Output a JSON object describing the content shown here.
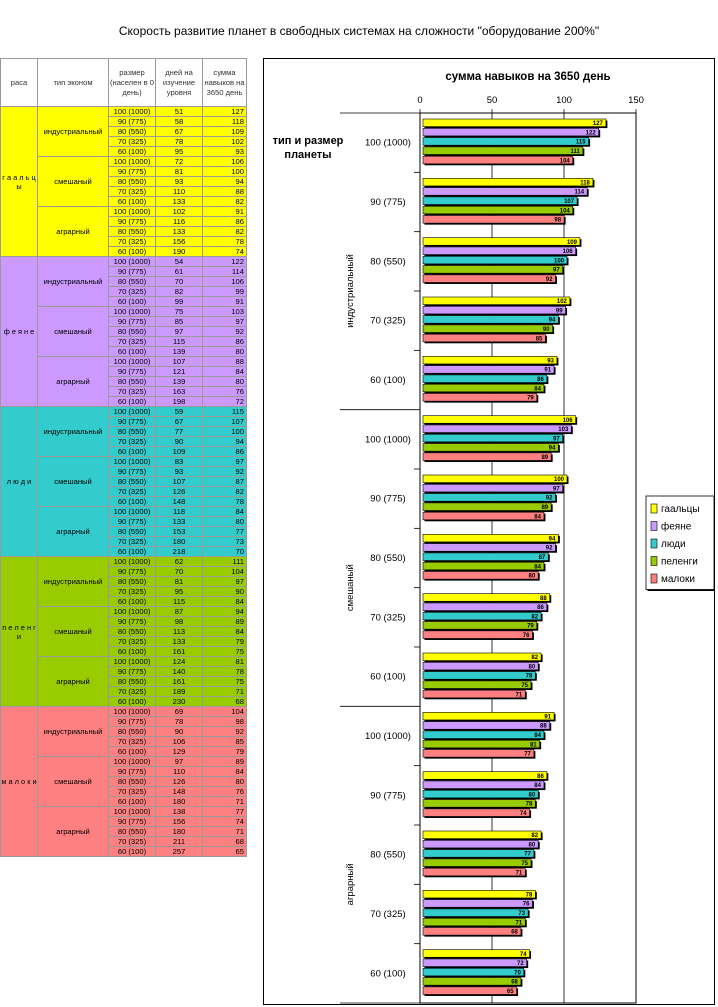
{
  "title": "Скорость развитие планет в свободных системах на сложности \"оборудование 200%\"",
  "table": {
    "headers": {
      "race": "раса",
      "econ": "тип эконом",
      "size": "размер (населен в 0 день)",
      "days": "дней на изучение уровня",
      "sum": "сумма навыков на 3650 день"
    },
    "race_letters": {
      "gaal": [
        "г",
        "а",
        "а",
        "л",
        "ь",
        "ц",
        "ы"
      ],
      "feyane": [
        "ф",
        "е",
        "я",
        "н",
        "е"
      ],
      "lyudi": [
        "л",
        "ю",
        "д",
        "и"
      ],
      "peleng": [
        "п",
        "е",
        "л",
        "е",
        "н",
        "г",
        "и"
      ],
      "maloki": [
        "м",
        "а",
        "л",
        "о",
        "к",
        "и"
      ]
    },
    "races": [
      {
        "key": "gaal",
        "color": "#ffff00",
        "groups": [
          {
            "econ": "индустриальный",
            "rows": [
              [
                "100 (1000)",
                "51",
                "127"
              ],
              [
                "90 (775)",
                "58",
                "118"
              ],
              [
                "80 (550)",
                "67",
                "109"
              ],
              [
                "70 (325)",
                "78",
                "102"
              ],
              [
                "60 (100)",
                "95",
                "93"
              ]
            ]
          },
          {
            "econ": "смешаный",
            "rows": [
              [
                "100 (1000)",
                "72",
                "106"
              ],
              [
                "90 (775)",
                "81",
                "100"
              ],
              [
                "80 (550)",
                "93",
                "94"
              ],
              [
                "70 (325)",
                "110",
                "88"
              ],
              [
                "60 (100)",
                "133",
                "82"
              ]
            ]
          },
          {
            "econ": "аграрный",
            "rows": [
              [
                "100 (1000)",
                "102",
                "91"
              ],
              [
                "90 (775)",
                "116",
                "86"
              ],
              [
                "80 (550)",
                "133",
                "82"
              ],
              [
                "70 (325)",
                "156",
                "78"
              ],
              [
                "60 (100)",
                "190",
                "74"
              ]
            ]
          }
        ]
      },
      {
        "key": "feyane",
        "color": "#cc99ff",
        "groups": [
          {
            "econ": "индустриальный",
            "rows": [
              [
                "100 (1000)",
                "54",
                "122"
              ],
              [
                "90 (775)",
                "61",
                "114"
              ],
              [
                "80 (550)",
                "70",
                "106"
              ],
              [
                "70 (325)",
                "82",
                "99"
              ],
              [
                "60 (100)",
                "99",
                "91"
              ]
            ]
          },
          {
            "econ": "смешаный",
            "rows": [
              [
                "100 (1000)",
                "75",
                "103"
              ],
              [
                "90 (775)",
                "85",
                "97"
              ],
              [
                "80 (550)",
                "97",
                "92"
              ],
              [
                "70 (325)",
                "115",
                "86"
              ],
              [
                "60 (100)",
                "139",
                "80"
              ]
            ]
          },
          {
            "econ": "аграрный",
            "rows": [
              [
                "100 (1000)",
                "107",
                "88"
              ],
              [
                "90 (775)",
                "121",
                "84"
              ],
              [
                "80 (550)",
                "139",
                "80"
              ],
              [
                "70 (325)",
                "163",
                "76"
              ],
              [
                "60 (100)",
                "198",
                "72"
              ]
            ]
          }
        ]
      },
      {
        "key": "lyudi",
        "color": "#33cccc",
        "groups": [
          {
            "econ": "индустриальный",
            "rows": [
              [
                "100 (1000)",
                "59",
                "115"
              ],
              [
                "90 (775)",
                "67",
                "107"
              ],
              [
                "80 (550)",
                "77",
                "100"
              ],
              [
                "70 (325)",
                "90",
                "94"
              ],
              [
                "60 (100)",
                "109",
                "86"
              ]
            ]
          },
          {
            "econ": "смешаный",
            "rows": [
              [
                "100 (1000)",
                "83",
                "97"
              ],
              [
                "90 (775)",
                "93",
                "92"
              ],
              [
                "80 (550)",
                "107",
                "87"
              ],
              [
                "70 (325)",
                "126",
                "82"
              ],
              [
                "60 (100)",
                "148",
                "78"
              ]
            ]
          },
          {
            "econ": "аграрный",
            "rows": [
              [
                "100 (1000)",
                "118",
                "84"
              ],
              [
                "90 (775)",
                "133",
                "80"
              ],
              [
                "80 (550)",
                "153",
                "77"
              ],
              [
                "70 (325)",
                "180",
                "73"
              ],
              [
                "60 (100)",
                "218",
                "70"
              ]
            ]
          }
        ]
      },
      {
        "key": "peleng",
        "color": "#99cc00",
        "groups": [
          {
            "econ": "индустриальный",
            "rows": [
              [
                "100 (1000)",
                "62",
                "111"
              ],
              [
                "90 (775)",
                "70",
                "104"
              ],
              [
                "80 (550)",
                "81",
                "97"
              ],
              [
                "70 (325)",
                "95",
                "90"
              ],
              [
                "60 (100)",
                "115",
                "84"
              ]
            ]
          },
          {
            "econ": "смешаный",
            "rows": [
              [
                "100 (1000)",
                "87",
                "94"
              ],
              [
                "90 (775)",
                "98",
                "89"
              ],
              [
                "80 (550)",
                "113",
                "84"
              ],
              [
                "70 (325)",
                "133",
                "79"
              ],
              [
                "60 (100)",
                "161",
                "75"
              ]
            ]
          },
          {
            "econ": "аграрный",
            "rows": [
              [
                "100 (1000)",
                "124",
                "81"
              ],
              [
                "90 (775)",
                "140",
                "78"
              ],
              [
                "80 (550)",
                "161",
                "75"
              ],
              [
                "70 (325)",
                "189",
                "71"
              ],
              [
                "60 (100)",
                "230",
                "68"
              ]
            ]
          }
        ]
      },
      {
        "key": "maloki",
        "color": "#ff8080",
        "groups": [
          {
            "econ": "индустриальный",
            "rows": [
              [
                "100 (1000)",
                "69",
                "104"
              ],
              [
                "90 (775)",
                "78",
                "98"
              ],
              [
                "80 (550)",
                "90",
                "92"
              ],
              [
                "70 (325)",
                "106",
                "85"
              ],
              [
                "60 (100)",
                "129",
                "79"
              ]
            ]
          },
          {
            "econ": "смешаный",
            "rows": [
              [
                "100 (1000)",
                "97",
                "89"
              ],
              [
                "90 (775)",
                "110",
                "84"
              ],
              [
                "80 (550)",
                "126",
                "80"
              ],
              [
                "70 (325)",
                "148",
                "76"
              ],
              [
                "60 (100)",
                "180",
                "71"
              ]
            ]
          },
          {
            "econ": "аграрный",
            "rows": [
              [
                "100 (1000)",
                "138",
                "77"
              ],
              [
                "90 (775)",
                "156",
                "74"
              ],
              [
                "80 (550)",
                "180",
                "71"
              ],
              [
                "70 (325)",
                "211",
                "68"
              ],
              [
                "60 (100)",
                "257",
                "65"
              ]
            ]
          }
        ]
      }
    ]
  },
  "chart_data": {
    "type": "bar",
    "orientation": "horizontal",
    "title": "сумма навыков на 3650 день",
    "ylabel": "тип и размер планеты",
    "xlim": [
      0,
      150
    ],
    "xticks": [
      "0",
      "50",
      "100",
      "150"
    ],
    "groups": [
      "индустриальный",
      "смешаный",
      "аграрный"
    ],
    "sizes": [
      "100 (1000)",
      "90 (775)",
      "80 (550)",
      "70 (325)",
      "60 (100)"
    ],
    "series": [
      {
        "name": "гаальцы",
        "color": "#ffff00",
        "values": [
          127,
          118,
          109,
          102,
          93,
          106,
          100,
          94,
          88,
          82,
          91,
          86,
          82,
          78,
          74
        ]
      },
      {
        "name": "феяне",
        "color": "#cc99ff",
        "values": [
          122,
          114,
          106,
          99,
          91,
          103,
          97,
          92,
          86,
          80,
          88,
          84,
          80,
          76,
          72
        ]
      },
      {
        "name": "люди",
        "color": "#33cccc",
        "values": [
          115,
          107,
          100,
          94,
          86,
          97,
          92,
          87,
          82,
          78,
          84,
          80,
          77,
          73,
          70
        ]
      },
      {
        "name": "пеленги",
        "color": "#99cc00",
        "values": [
          111,
          104,
          97,
          90,
          84,
          94,
          89,
          84,
          79,
          75,
          81,
          78,
          75,
          71,
          68
        ]
      },
      {
        "name": "малоки",
        "color": "#ff8080",
        "values": [
          104,
          98,
          92,
          85,
          79,
          89,
          84,
          80,
          76,
          71,
          77,
          74,
          71,
          68,
          65
        ]
      }
    ],
    "legend": "right"
  }
}
